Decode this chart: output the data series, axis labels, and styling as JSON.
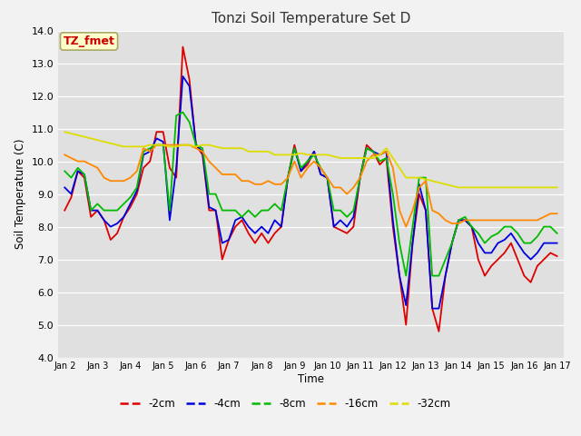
{
  "title": "Tonzi Soil Temperature Set D",
  "xlabel": "Time",
  "ylabel": "Soil Temperature (C)",
  "annotation": "TZ_fmet",
  "ylim": [
    4.0,
    14.0
  ],
  "yticks": [
    4.0,
    5.0,
    6.0,
    7.0,
    8.0,
    9.0,
    10.0,
    11.0,
    12.0,
    13.0,
    14.0
  ],
  "xtick_labels": [
    "Jan 2",
    "Jan 3",
    "Jan 4",
    "Jan 5",
    "Jan 6",
    "Jan 7",
    "Jan 8",
    "Jan 9",
    "Jan 10",
    "Jan 11",
    "Jan 12",
    "Jan 13",
    "Jan 14",
    "Jan 15",
    "Jan 16",
    "Jan 17"
  ],
  "colors": {
    "-2cm": "#dd0000",
    "-4cm": "#0000dd",
    "-8cm": "#00bb00",
    "-16cm": "#ff8800",
    "-32cm": "#dddd00"
  },
  "legend_labels": [
    "-2cm",
    "-4cm",
    "-8cm",
    "-16cm",
    "-32cm"
  ],
  "fig_bg_color": "#f2f2f2",
  "plot_bg_color": "#e0e0e0",
  "annotation_bg": "#ffffcc",
  "annotation_border": "#cccc88",
  "annotation_text_color": "#cc0000",
  "series": {
    "-2cm": [
      8.5,
      8.9,
      9.7,
      9.5,
      8.3,
      8.5,
      8.2,
      7.6,
      7.8,
      8.3,
      8.6,
      9.0,
      9.8,
      10.0,
      10.9,
      10.9,
      9.8,
      9.5,
      13.5,
      12.5,
      10.5,
      10.2,
      8.5,
      8.5,
      7.0,
      7.6,
      8.0,
      8.2,
      7.8,
      7.5,
      7.8,
      7.5,
      7.8,
      8.0,
      9.5,
      10.5,
      9.7,
      9.9,
      10.3,
      9.6,
      9.5,
      8.0,
      7.9,
      7.8,
      8.0,
      9.5,
      10.5,
      10.3,
      9.9,
      10.1,
      8.0,
      6.5,
      5.0,
      7.5,
      9.0,
      8.5,
      5.5,
      4.8,
      6.5,
      7.5,
      8.2,
      8.2,
      8.0,
      7.0,
      6.5,
      6.8,
      7.0,
      7.2,
      7.5,
      7.0,
      6.5,
      6.3,
      6.8,
      7.0,
      7.2,
      7.1
    ],
    "-4cm": [
      9.2,
      9.0,
      9.7,
      9.6,
      8.5,
      8.5,
      8.2,
      8.0,
      8.1,
      8.3,
      8.7,
      9.1,
      10.2,
      10.3,
      10.7,
      10.6,
      8.2,
      9.8,
      12.6,
      12.3,
      10.5,
      10.3,
      8.6,
      8.5,
      7.5,
      7.6,
      8.2,
      8.3,
      8.0,
      7.8,
      8.0,
      7.8,
      8.2,
      8.0,
      9.5,
      10.4,
      9.7,
      10.0,
      10.3,
      9.6,
      9.5,
      8.0,
      8.2,
      8.0,
      8.3,
      9.5,
      10.4,
      10.3,
      10.2,
      10.3,
      8.2,
      6.5,
      5.6,
      7.5,
      9.3,
      8.5,
      5.5,
      5.5,
      6.5,
      7.5,
      8.2,
      8.2,
      8.0,
      7.5,
      7.2,
      7.2,
      7.5,
      7.6,
      7.8,
      7.5,
      7.2,
      7.0,
      7.2,
      7.5,
      7.5,
      7.5
    ],
    "-8cm": [
      9.7,
      9.5,
      9.8,
      9.6,
      8.5,
      8.7,
      8.5,
      8.5,
      8.5,
      8.7,
      8.9,
      9.2,
      10.3,
      10.4,
      10.5,
      10.5,
      8.5,
      11.4,
      11.5,
      11.2,
      10.5,
      10.4,
      9.0,
      9.0,
      8.5,
      8.5,
      8.5,
      8.3,
      8.5,
      8.3,
      8.5,
      8.5,
      8.7,
      8.5,
      9.5,
      10.4,
      9.8,
      10.0,
      10.2,
      9.8,
      9.5,
      8.5,
      8.5,
      8.3,
      8.5,
      9.5,
      10.4,
      10.3,
      10.0,
      10.1,
      9.0,
      7.5,
      6.5,
      8.0,
      9.5,
      9.5,
      6.5,
      6.5,
      7.0,
      7.5,
      8.2,
      8.3,
      8.0,
      7.8,
      7.5,
      7.7,
      7.8,
      8.0,
      8.0,
      7.8,
      7.5,
      7.5,
      7.7,
      8.0,
      8.0,
      7.8
    ],
    "-16cm": [
      10.2,
      10.1,
      10.0,
      10.0,
      9.9,
      9.8,
      9.5,
      9.4,
      9.4,
      9.4,
      9.5,
      9.7,
      10.4,
      10.3,
      10.5,
      10.5,
      10.5,
      10.5,
      10.5,
      10.5,
      10.4,
      10.3,
      10.0,
      9.8,
      9.6,
      9.6,
      9.6,
      9.4,
      9.4,
      9.3,
      9.3,
      9.4,
      9.3,
      9.3,
      9.5,
      10.0,
      9.5,
      9.8,
      10.0,
      9.8,
      9.5,
      9.2,
      9.2,
      9.0,
      9.2,
      9.5,
      10.0,
      10.2,
      10.2,
      10.3,
      9.8,
      8.5,
      8.0,
      8.5,
      9.2,
      9.4,
      8.5,
      8.4,
      8.2,
      8.1,
      8.1,
      8.2,
      8.2,
      8.2,
      8.2,
      8.2,
      8.2,
      8.2,
      8.2,
      8.2,
      8.2,
      8.2,
      8.2,
      8.3,
      8.4,
      8.4
    ],
    "-32cm": [
      10.9,
      10.85,
      10.8,
      10.75,
      10.7,
      10.65,
      10.6,
      10.55,
      10.5,
      10.45,
      10.45,
      10.45,
      10.45,
      10.5,
      10.5,
      10.5,
      10.45,
      10.45,
      10.5,
      10.5,
      10.45,
      10.5,
      10.5,
      10.45,
      10.4,
      10.4,
      10.4,
      10.4,
      10.3,
      10.3,
      10.3,
      10.3,
      10.2,
      10.2,
      10.2,
      10.2,
      10.25,
      10.2,
      10.2,
      10.2,
      10.2,
      10.15,
      10.1,
      10.1,
      10.1,
      10.1,
      10.1,
      10.1,
      10.2,
      10.4,
      10.1,
      9.8,
      9.5,
      9.5,
      9.5,
      9.45,
      9.4,
      9.35,
      9.3,
      9.25,
      9.2,
      9.2,
      9.2,
      9.2,
      9.2,
      9.2,
      9.2,
      9.2,
      9.2,
      9.2,
      9.2,
      9.2,
      9.2,
      9.2,
      9.2,
      9.2
    ]
  }
}
